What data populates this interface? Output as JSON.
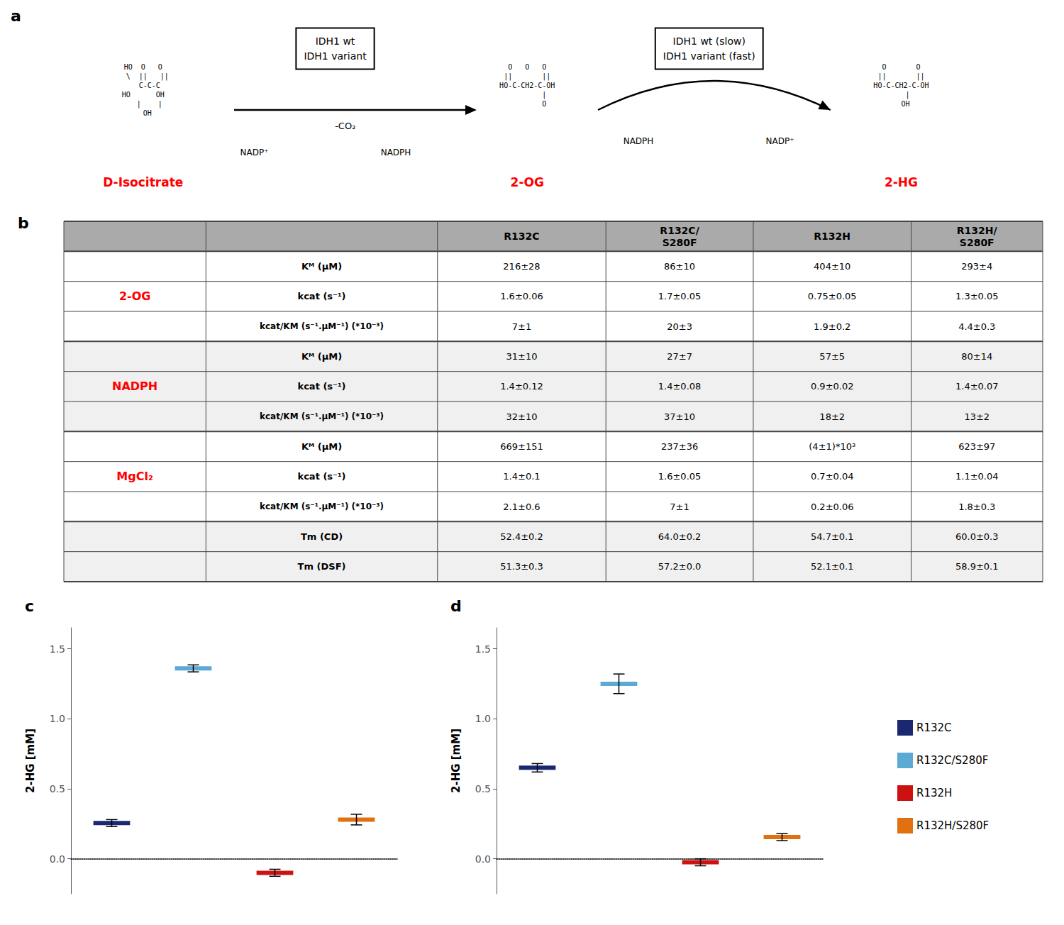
{
  "chart_data": [
    {
      "type": "diagram",
      "title": "a",
      "steps": [
        {
          "enzyme": "IDH1 wt\nIDH1 variant",
          "annotations": [
            "-CO₂"
          ],
          "cofactors": [
            "NADP⁺",
            "NADPH"
          ]
        },
        {
          "enzyme": "IDH1 wt (slow)\nIDH1 variant (fast)",
          "cofactors": [
            "NADPH",
            "NADP⁺"
          ]
        }
      ],
      "compounds": [
        {
          "name": "D-Isocitrate",
          "color": "red",
          "structure": "HO  O   O\n  \\  ||   ||\n   C-C-C\nHO      OH\n   |    |\n  OH"
        },
        {
          "name": "2-OG",
          "color": "red",
          "structure": "O   O   O\n||       ||\nHO-C-CH2-C-OH\n        |\n        O"
        },
        {
          "name": "2-HG",
          "color": "red",
          "structure": "O       O\n||       ||\nHO-C-CH2-C-OH\n   |\n  OH"
        }
      ]
    },
    {
      "type": "table",
      "title": "b",
      "columns": [
        "R132C",
        "R132C/\nS280F",
        "R132H",
        "R132H/\nS280F"
      ],
      "header_color": "#aaaaaa",
      "border_color": "#444444",
      "group_color": "red",
      "rows": [
        {
          "group": "2-OG",
          "parameter": "Kᴹ (μM)",
          "color": "#ffffff",
          "values": [
            "216±28",
            "86±10",
            "404±10",
            "293±4"
          ]
        },
        {
          "group": "2-OG",
          "parameter": "kcat (s⁻¹)",
          "color": "#ffffff",
          "values": [
            "1.6±0.06",
            "1.7±0.05",
            "0.75±0.05",
            "1.3±0.05"
          ]
        },
        {
          "group": "2-OG",
          "parameter": "kcat/KM (s⁻¹.μM⁻¹) (*10⁻³)",
          "color": "#ffffff",
          "values": [
            "7±1",
            "20±3",
            "1.9±0.2",
            "4.4±0.3"
          ]
        },
        {
          "group": "NADPH",
          "parameter": "Kᴹ (μM)",
          "color": "#f0f0f0",
          "values": [
            "31±10",
            "27±7",
            "57±5",
            "80±14"
          ]
        },
        {
          "group": "NADPH",
          "parameter": "kcat (s⁻¹)",
          "color": "#f0f0f0",
          "values": [
            "1.4±0.12",
            "1.4±0.08",
            "0.9±0.02",
            "1.4±0.07"
          ]
        },
        {
          "group": "NADPH",
          "parameter": "kcat/KM (s⁻¹.μM⁻¹) (*10⁻³)",
          "color": "#f0f0f0",
          "values": [
            "32±10",
            "37±10",
            "18±2",
            "13±2"
          ]
        },
        {
          "group": "MgCl₂",
          "parameter": "Kᴹ (μM)",
          "color": "#ffffff",
          "values": [
            "669±151",
            "237±36",
            "(4±1)*10³",
            "623±97"
          ]
        },
        {
          "group": "MgCl₂",
          "parameter": "kcat (s⁻¹)",
          "color": "#ffffff",
          "values": [
            "1.4±0.1",
            "1.6±0.05",
            "0.7±0.04",
            "1.1±0.04"
          ]
        },
        {
          "group": "MgCl₂",
          "parameter": "kcat/KM (s⁻¹.μM⁻¹) (*10⁻³)",
          "color": "#ffffff",
          "values": [
            "2.1±0.6",
            "7±1",
            "0.2±0.06",
            "1.8±0.3"
          ]
        },
        {
          "parameter": "Tm (CD)",
          "color": "#f0f0f0",
          "values": [
            "52.4±0.2",
            "64.0±0.2",
            "54.7±0.1",
            "60.0±0.3"
          ]
        },
        {
          "parameter": "Tm (DSF)",
          "color": "#f0f0f0",
          "values": [
            "51.3±0.3",
            "57.2±0.0",
            "52.1±0.1",
            "58.9±0.1"
          ]
        }
      ]
    },
    {
      "type": "bar",
      "title": "c",
      "ylabel": "2-HG [mM]",
      "categories": [
        null,
        null,
        null,
        null
      ],
      "series": [
        {
          "name": "R132C",
          "color": "#1a2870",
          "values": [
            0.255,
            null,
            null,
            null
          ],
          "errors": [
            0.025,
            null,
            null,
            null
          ]
        },
        {
          "name": "R132C/S280F",
          "color": "#5baad4",
          "values": [
            null,
            1.36,
            null,
            null
          ],
          "errors": [
            null,
            0.025,
            null,
            null
          ]
        },
        {
          "name": "R132H",
          "color": "#cc1111",
          "values": [
            null,
            null,
            -0.1,
            null
          ],
          "errors": [
            null,
            null,
            0.025,
            null
          ]
        },
        {
          "name": "R132H/S280F",
          "color": "#e07010",
          "values": [
            null,
            null,
            null,
            0.28
          ],
          "errors": [
            null,
            null,
            null,
            0.038
          ]
        }
      ],
      "ylim": [
        -0.25,
        1.65
      ],
      "yticks": [
        {
          "value": 0,
          "label": "0.0"
        },
        0.5,
        {
          "value": 1,
          "label": "1.0"
        },
        1.5
      ],
      "grid": false,
      "tick_labels": "y"
    },
    {
      "type": "bar",
      "title": "d",
      "ylabel": "2-HG [mM]",
      "categories": [
        null,
        null,
        null,
        null
      ],
      "series": [
        {
          "name": "R132C",
          "color": "#1a2870",
          "values": [
            0.65,
            null,
            null,
            null
          ],
          "errors": [
            0.03,
            null,
            null,
            null
          ]
        },
        {
          "name": "R132C/S280F",
          "color": "#5baad4",
          "values": [
            null,
            1.25,
            null,
            null
          ],
          "errors": [
            null,
            0.07,
            null,
            null
          ]
        },
        {
          "name": "R132H",
          "color": "#cc1111",
          "values": [
            null,
            null,
            -0.025,
            null
          ],
          "errors": [
            null,
            null,
            0.025,
            null
          ]
        },
        {
          "name": "R132H/S280F",
          "color": "#e07010",
          "values": [
            null,
            null,
            null,
            0.155
          ],
          "errors": [
            null,
            null,
            null,
            0.025
          ]
        }
      ],
      "ylim": [
        -0.25,
        1.65
      ],
      "yticks": [
        {
          "value": 0,
          "label": "0.0"
        },
        0.5,
        {
          "value": 1,
          "label": "1.0"
        },
        1.5
      ],
      "grid": false,
      "tick_labels": "y",
      "legend": "right"
    }
  ]
}
